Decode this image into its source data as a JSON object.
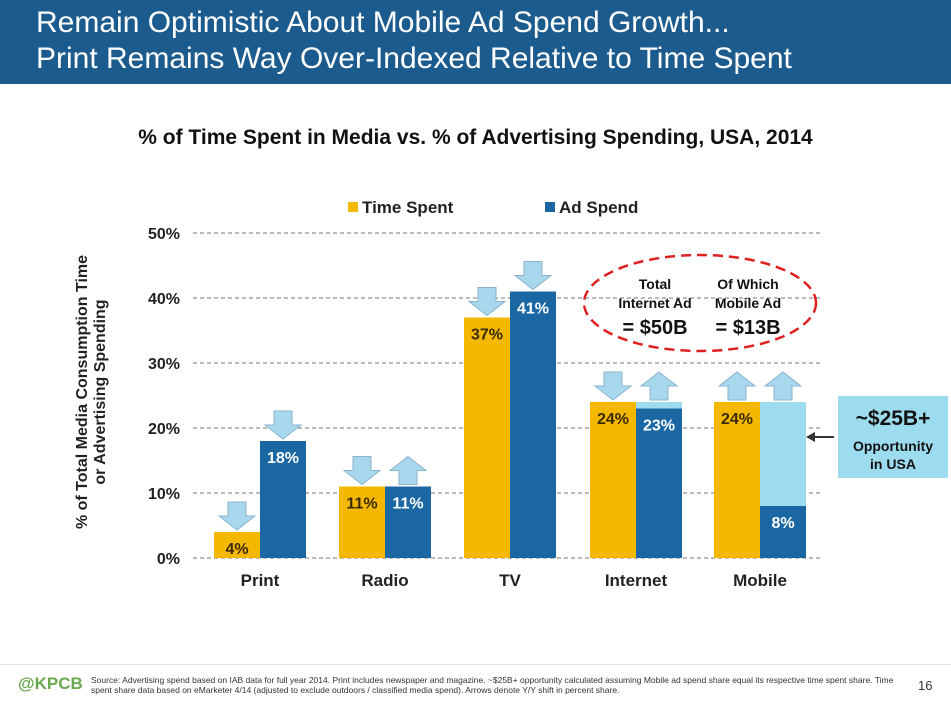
{
  "slide": {
    "title_line1": "Remain Optimistic About Mobile Ad Spend Growth...",
    "title_line2": "Print Remains Way Over-Indexed Relative to Time Spent",
    "page_number": "16",
    "logo": "@KPCB",
    "footnote": "Source: Advertising spend based on IAB data for full year 2014. Print includes newspaper and magazine. ~$25B+ opportunity calculated assuming Mobile ad spend share equal its respective time spent share. Time spent share data based on eMarketer 4/14 (adjusted to exclude outdoors / classified media spend). Arrows denote Y/Y shift in percent share."
  },
  "colors": {
    "header": "#1c5b8e",
    "time_spent": "#f5b800",
    "ad_spend": "#1a67a3",
    "opportunity": "#9ddcef",
    "arrow": "#a8d8ee",
    "oval": "#e02020"
  },
  "chart_data": {
    "type": "bar",
    "title": "% of Time Spent in Media vs. % of Advertising Spending, USA, 2014",
    "ylabel_lines": [
      "% of Total Media Consumption Time",
      "or Advertising Spending"
    ],
    "xlabel": "",
    "ylim": [
      0,
      50
    ],
    "yticks": [
      0,
      10,
      20,
      30,
      40,
      50
    ],
    "ytick_labels": [
      "0%",
      "10%",
      "20%",
      "30%",
      "40%",
      "50%"
    ],
    "grid": true,
    "legend_position": "top",
    "categories": [
      "Print",
      "Radio",
      "TV",
      "Internet",
      "Mobile"
    ],
    "series": [
      {
        "name": "Time Spent",
        "values": [
          4,
          11,
          37,
          24,
          24
        ],
        "labels": [
          "4%",
          "11%",
          "37%",
          "24%",
          "24%"
        ],
        "arrows": [
          "down",
          "down",
          "down",
          "down",
          "up"
        ]
      },
      {
        "name": "Ad Spend",
        "values": [
          18,
          11,
          41,
          23,
          8
        ],
        "labels": [
          "18%",
          "11%",
          "41%",
          "23%",
          "8%"
        ],
        "arrows": [
          "down",
          "up",
          "down",
          "up",
          "up"
        ]
      }
    ],
    "internet_bar_top_value": 24,
    "mobile_opportunity": {
      "from_value": 8,
      "to_value": 24,
      "label_big": "~$25B+",
      "label_lines": [
        "Opportunity",
        "in USA"
      ]
    },
    "callout": {
      "left_header_lines": [
        "Total",
        "Internet Ad"
      ],
      "left_value_prefix": "= ",
      "left_value": "$50B",
      "right_header_lines": [
        "Of Which",
        "Mobile Ad"
      ],
      "right_value_prefix": "= ",
      "right_value": "$13B"
    }
  }
}
